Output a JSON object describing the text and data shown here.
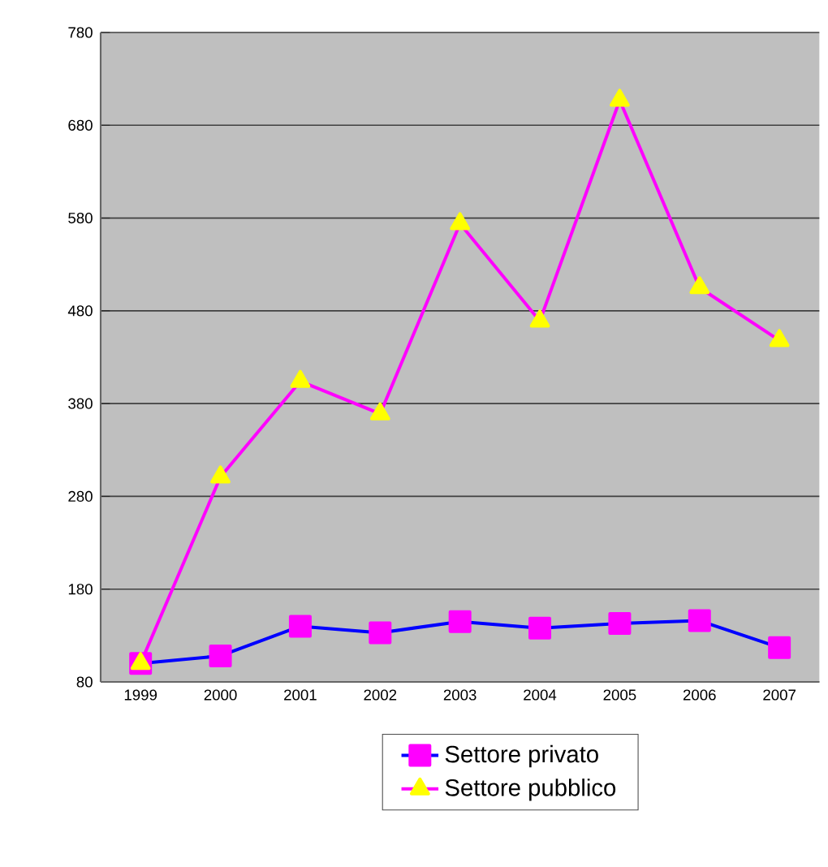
{
  "chart_data": {
    "type": "line",
    "categories": [
      "1999",
      "2000",
      "2001",
      "2002",
      "2003",
      "2004",
      "2005",
      "2006",
      "2007"
    ],
    "series": [
      {
        "name": "Settore privato",
        "color": "#0000ff",
        "marker": "square",
        "colors": [
          "#ff00ff",
          "#ff00ff",
          "#ff00ff",
          "#ff00ff",
          "#ff00ff",
          "#ff00ff",
          "#ff00ff",
          "#ff00ff",
          "#ff00ff"
        ],
        "values": [
          100,
          108,
          140,
          133,
          145,
          138,
          143,
          146,
          117
        ]
      },
      {
        "name": "Settore pubblico",
        "color": "#ff00ff",
        "marker": "triangle",
        "colors": [
          "#ffff00",
          "#ffff00",
          "#ffff00",
          "#ffff00",
          "#ffff00",
          "#ffff00",
          "#ffff00",
          "#ffff00",
          "#ffff00"
        ],
        "values": [
          100,
          301,
          404,
          369,
          574,
          469,
          707,
          505,
          448
        ]
      }
    ],
    "ylim": [
      80,
      780
    ],
    "yticks": [
      80,
      180,
      280,
      380,
      480,
      580,
      680,
      780
    ],
    "grid": "y",
    "legend": "bottom",
    "line_style": "solid"
  }
}
